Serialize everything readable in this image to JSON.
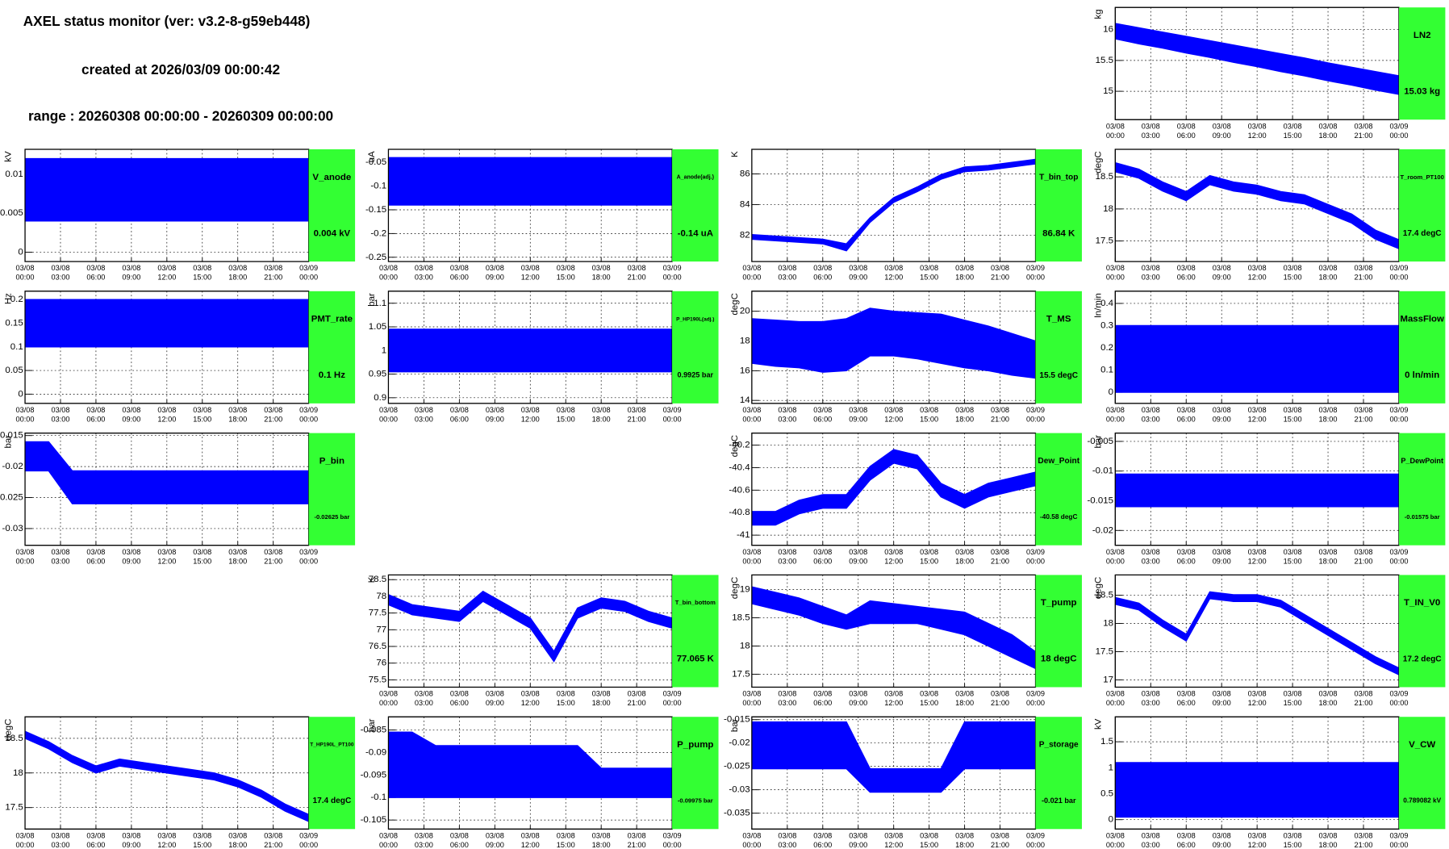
{
  "header": {
    "title": "AXEL status monitor (ver: v3.2-8-g59eb448)",
    "created": "created at 2026/03/09 00:00:42",
    "range": "range : 20260308 00:00:00 - 20260309 00:00:00"
  },
  "time_axis": {
    "x": [
      0,
      2,
      4,
      6,
      8,
      10,
      12,
      14,
      16,
      18,
      20,
      22,
      24
    ],
    "xlim": [
      0,
      24
    ],
    "xticks": [
      {
        "value": 0,
        "label": "03/08 00:00"
      },
      {
        "value": 3,
        "label": "03/08 03:00"
      },
      {
        "value": 6,
        "label": "03/08 06:00"
      },
      {
        "value": 9,
        "label": "03/08 09:00"
      },
      {
        "value": 12,
        "label": "03/08 12:00"
      },
      {
        "value": 15,
        "label": "03/08 15:00"
      },
      {
        "value": 18,
        "label": "03/08 18:00"
      },
      {
        "value": 21,
        "label": "03/08 21:00"
      },
      {
        "value": 24,
        "label": "03/09 00:00"
      }
    ]
  },
  "chart_data": [
    {
      "type": "band",
      "title": "LN2",
      "current": "15.03 kg",
      "ylabel": "kg",
      "color": "#0000ff",
      "ylim": [
        14.54,
        16.36
      ],
      "yticks": [
        15,
        15.5,
        16
      ],
      "highs": [
        16.1,
        16.03,
        15.96,
        15.89,
        15.82,
        15.75,
        15.68,
        15.61,
        15.54,
        15.46,
        15.39,
        15.32,
        15.25
      ],
      "lows": [
        15.85,
        15.77,
        15.7,
        15.62,
        15.55,
        15.47,
        15.4,
        15.32,
        15.25,
        15.17,
        15.1,
        15.02,
        14.95
      ]
    },
    {
      "type": "band",
      "title": "V_anode",
      "current": "0.004 kV",
      "ylabel": "kV",
      "color": "#0000ff",
      "ylim": [
        -0.0012,
        0.0132
      ],
      "yticks": [
        0,
        0.005,
        0.01
      ],
      "highs": [
        0.012,
        0.012,
        0.012,
        0.012,
        0.012,
        0.012,
        0.012,
        0.012,
        0.012,
        0.012,
        0.012,
        0.012,
        0.012
      ],
      "lows": [
        0.004,
        0.004,
        0.004,
        0.004,
        0.004,
        0.004,
        0.004,
        0.004,
        0.004,
        0.004,
        0.004,
        0.004,
        0.004
      ]
    },
    {
      "type": "band",
      "title": "A_anode(adj.)",
      "current": "-0.14 uA",
      "ylabel": "uA",
      "color": "#0000ff",
      "ylim": [
        -0.259,
        -0.0225
      ],
      "yticks": [
        -0.25,
        -0.2,
        -0.15,
        -0.1,
        -0.05
      ],
      "highs": [
        -0.04,
        -0.04,
        -0.04,
        -0.04,
        -0.04,
        -0.04,
        -0.04,
        -0.04,
        -0.04,
        -0.04,
        -0.04,
        -0.04,
        -0.04
      ],
      "lows": [
        -0.14,
        -0.14,
        -0.14,
        -0.14,
        -0.14,
        -0.14,
        -0.14,
        -0.14,
        -0.14,
        -0.14,
        -0.14,
        -0.14,
        -0.14
      ]
    },
    {
      "type": "band",
      "title": "T_bin_top",
      "current": "86.84 K",
      "ylabel": "K",
      "color": "#0000ff",
      "ylim": [
        80.3,
        87.6
      ],
      "yticks": [
        82,
        84,
        86
      ],
      "highs": [
        82.05,
        81.95,
        81.85,
        81.75,
        81.45,
        83.15,
        84.45,
        85.15,
        85.95,
        86.45,
        86.55,
        86.75,
        86.95
      ],
      "lows": [
        81.75,
        81.65,
        81.55,
        81.45,
        81.0,
        82.85,
        84.15,
        84.85,
        85.65,
        86.15,
        86.25,
        86.45,
        86.65
      ]
    },
    {
      "type": "band",
      "title": "T_room_PT100",
      "current": "17.4 degC",
      "ylabel": "degC",
      "color": "#0000ff",
      "ylim": [
        17.18,
        18.93
      ],
      "yticks": [
        17.5,
        18,
        18.5
      ],
      "highs": [
        18.72,
        18.62,
        18.42,
        18.27,
        18.52,
        18.42,
        18.37,
        18.27,
        18.22,
        18.07,
        17.92,
        17.67,
        17.52
      ],
      "lows": [
        18.58,
        18.48,
        18.28,
        18.13,
        18.38,
        18.28,
        18.23,
        18.13,
        18.08,
        17.93,
        17.78,
        17.53,
        17.38
      ]
    },
    {
      "type": "band",
      "title": "PMT_rate",
      "current": "0.1 Hz",
      "ylabel": "Hz",
      "color": "#0000ff",
      "ylim": [
        -0.0196,
        0.2176
      ],
      "yticks": [
        0,
        0.05,
        0.1,
        0.15,
        0.2
      ],
      "highs": [
        0.2,
        0.2,
        0.2,
        0.2,
        0.2,
        0.2,
        0.2,
        0.2,
        0.2,
        0.2,
        0.2,
        0.2,
        0.2
      ],
      "lows": [
        0.1,
        0.1,
        0.1,
        0.1,
        0.1,
        0.1,
        0.1,
        0.1,
        0.1,
        0.1,
        0.1,
        0.1,
        0.1
      ]
    },
    {
      "type": "band",
      "title": "P_HP190L(adj.)",
      "current": "0.9925 bar",
      "ylabel": "bar",
      "color": "#0000ff",
      "ylim": [
        0.888,
        1.1255
      ],
      "yticks": [
        0.9,
        0.95,
        1,
        1.05,
        1.1
      ],
      "highs": [
        1.045,
        1.045,
        1.045,
        1.045,
        1.045,
        1.045,
        1.045,
        1.045,
        1.045,
        1.045,
        1.045,
        1.045,
        1.045
      ],
      "lows": [
        0.955,
        0.955,
        0.955,
        0.955,
        0.955,
        0.955,
        0.955,
        0.955,
        0.955,
        0.955,
        0.955,
        0.955,
        0.955
      ]
    },
    {
      "type": "band",
      "title": "T_MS",
      "current": "15.5 degC",
      "ylabel": "degC",
      "color": "#0000ff",
      "ylim": [
        13.8,
        21.35
      ],
      "yticks": [
        14,
        16,
        18,
        20
      ],
      "highs": [
        19.5,
        19.4,
        19.3,
        19.3,
        19.5,
        20.2,
        20.0,
        19.9,
        19.8,
        19.4,
        19.0,
        18.5,
        18.0
      ],
      "lows": [
        16.5,
        16.3,
        16.2,
        15.9,
        16.0,
        17.0,
        17.0,
        16.8,
        16.5,
        16.2,
        16.0,
        15.7,
        15.5
      ]
    },
    {
      "type": "band",
      "title": "MassFlow",
      "current": "0 ln/min",
      "ylabel": "ln/min",
      "color": "#0000ff",
      "ylim": [
        -0.05,
        0.455
      ],
      "yticks": [
        0,
        0.1,
        0.2,
        0.3,
        0.4
      ],
      "highs": [
        0.3,
        0.3,
        0.3,
        0.3,
        0.3,
        0.3,
        0.3,
        0.3,
        0.3,
        0.3,
        0.3,
        0.3,
        0.3
      ],
      "lows": [
        0,
        0,
        0,
        0,
        0,
        0,
        0,
        0,
        0,
        0,
        0,
        0,
        0
      ]
    },
    {
      "type": "band",
      "title": "P_bin",
      "current": "-0.02625 bar",
      "ylabel": "bar",
      "color": "#0000ff",
      "ylim": [
        -0.0327,
        -0.0146
      ],
      "yticks": [
        -0.03,
        -0.025,
        -0.02,
        -0.015
      ],
      "highs": [
        -0.016,
        -0.016,
        -0.0207,
        -0.0207,
        -0.0207,
        -0.0207,
        -0.0207,
        -0.0207,
        -0.0207,
        -0.0207,
        -0.0207,
        -0.0207,
        -0.0207
      ],
      "lows": [
        -0.0207,
        -0.0207,
        -0.026,
        -0.026,
        -0.026,
        -0.026,
        -0.026,
        -0.026,
        -0.026,
        -0.026,
        -0.026,
        -0.026,
        -0.026
      ]
    },
    {
      "type": "band",
      "title": "Dew_Point",
      "current": "-40.58 degC",
      "ylabel": "degC",
      "color": "#0000ff",
      "ylim": [
        -41.09,
        -40.093
      ],
      "yticks": [
        -41,
        -40.8,
        -40.6,
        -40.4,
        -40.2
      ],
      "highs": [
        -40.79,
        -40.79,
        -40.69,
        -40.64,
        -40.64,
        -40.39,
        -40.24,
        -40.29,
        -40.54,
        -40.64,
        -40.54,
        -40.49,
        -40.44
      ],
      "lows": [
        -40.91,
        -40.91,
        -40.81,
        -40.76,
        -40.76,
        -40.51,
        -40.36,
        -40.41,
        -40.66,
        -40.76,
        -40.66,
        -40.61,
        -40.56
      ]
    },
    {
      "type": "band",
      "title": "P_DewPoint",
      "current": "-0.01575 bar",
      "ylabel": "bar",
      "color": "#0000ff",
      "ylim": [
        -0.0225,
        -0.0036
      ],
      "yticks": [
        -0.02,
        -0.015,
        -0.01,
        -0.005
      ],
      "highs": [
        -0.0105,
        -0.0105,
        -0.0105,
        -0.0105,
        -0.0105,
        -0.0105,
        -0.0105,
        -0.0105,
        -0.0105,
        -0.0105,
        -0.0105,
        -0.0105,
        -0.0105
      ],
      "lows": [
        -0.016,
        -0.016,
        -0.016,
        -0.016,
        -0.016,
        -0.016,
        -0.016,
        -0.016,
        -0.016,
        -0.016,
        -0.016,
        -0.016,
        -0.016
      ]
    },
    {
      "type": "band",
      "title": "T_bin_bottom",
      "current": "77.065 K",
      "ylabel": "K",
      "color": "#0000ff",
      "ylim": [
        75.28,
        78.64
      ],
      "yticks": [
        75.5,
        76,
        76.5,
        77,
        77.5,
        78,
        78.5
      ],
      "highs": [
        78.05,
        77.75,
        77.65,
        77.55,
        78.15,
        77.75,
        77.35,
        76.35,
        77.65,
        77.95,
        77.85,
        77.55,
        77.35
      ],
      "lows": [
        77.75,
        77.45,
        77.35,
        77.25,
        77.85,
        77.45,
        77.05,
        76.05,
        77.35,
        77.65,
        77.55,
        77.25,
        77.05
      ]
    },
    {
      "type": "band",
      "title": "T_pump",
      "current": "18 degC",
      "ylabel": "degC",
      "color": "#0000ff",
      "ylim": [
        17.27,
        19.26
      ],
      "yticks": [
        17.5,
        18,
        18.5,
        19
      ],
      "highs": [
        19.05,
        18.95,
        18.85,
        18.7,
        18.55,
        18.8,
        18.75,
        18.7,
        18.65,
        18.6,
        18.4,
        18.2,
        17.9
      ],
      "lows": [
        18.75,
        18.65,
        18.55,
        18.4,
        18.3,
        18.4,
        18.4,
        18.4,
        18.3,
        18.2,
        18.0,
        17.8,
        17.6
      ]
    },
    {
      "type": "band",
      "title": "T_IN_V0",
      "current": "17.2 degC",
      "ylabel": "degC",
      "color": "#0000ff",
      "ylim": [
        16.87,
        18.86
      ],
      "yticks": [
        17,
        17.5,
        18,
        18.5
      ],
      "highs": [
        18.46,
        18.36,
        18.06,
        17.81,
        18.56,
        18.51,
        18.51,
        18.41,
        18.16,
        17.91,
        17.66,
        17.41,
        17.21
      ],
      "lows": [
        18.34,
        18.24,
        17.94,
        17.69,
        18.44,
        18.39,
        18.39,
        18.29,
        18.04,
        17.79,
        17.54,
        17.29,
        17.09
      ]
    },
    {
      "type": "band",
      "title": "T_HP190L_PT100",
      "current": "17.4 degC",
      "ylabel": "degC",
      "color": "#0000ff",
      "ylim": [
        17.19,
        18.81
      ],
      "yticks": [
        17.5,
        18,
        18.5
      ],
      "highs": [
        18.6,
        18.45,
        18.25,
        18.1,
        18.2,
        18.15,
        18.1,
        18.05,
        18.0,
        17.9,
        17.75,
        17.55,
        17.4
      ],
      "lows": [
        18.5,
        18.35,
        18.15,
        18.0,
        18.1,
        18.05,
        18.0,
        17.95,
        17.9,
        17.8,
        17.65,
        17.45,
        17.3
      ]
    },
    {
      "type": "band",
      "title": "P_pump",
      "current": "-0.09975 bar",
      "ylabel": "bar",
      "color": "#0000ff",
      "ylim": [
        -0.107,
        -0.0821
      ],
      "yticks": [
        -0.105,
        -0.1,
        -0.095,
        -0.09,
        -0.085
      ],
      "highs": [
        -0.0855,
        -0.0855,
        -0.0885,
        -0.0885,
        -0.0885,
        -0.0885,
        -0.0885,
        -0.0885,
        -0.0885,
        -0.0935,
        -0.0935,
        -0.0935,
        -0.0935
      ],
      "lows": [
        -0.1,
        -0.1,
        -0.1,
        -0.1,
        -0.1,
        -0.1,
        -0.1,
        -0.1,
        -0.1,
        -0.1,
        -0.1,
        -0.1,
        -0.1
      ]
    },
    {
      "type": "band",
      "title": "P_storage",
      "current": "-0.021 bar",
      "ylabel": "bar",
      "color": "#0000ff",
      "ylim": [
        -0.0384,
        -0.0144
      ],
      "yticks": [
        -0.035,
        -0.03,
        -0.025,
        -0.02,
        -0.015
      ],
      "highs": [
        -0.0155,
        -0.0155,
        -0.0155,
        -0.0155,
        -0.0155,
        -0.0255,
        -0.0255,
        -0.0255,
        -0.0255,
        -0.0155,
        -0.0155,
        -0.0155,
        -0.0155
      ],
      "lows": [
        -0.0255,
        -0.0255,
        -0.0255,
        -0.0255,
        -0.0255,
        -0.0305,
        -0.0305,
        -0.0305,
        -0.0305,
        -0.0255,
        -0.0255,
        -0.0255,
        -0.0255
      ]
    },
    {
      "type": "band",
      "title": "V_CW",
      "current": "0.789082 kV",
      "ylabel": "kV",
      "color": "#0000ff",
      "ylim": [
        -0.18,
        1.98
      ],
      "yticks": [
        0,
        0.5,
        1,
        1.5
      ],
      "highs": [
        1.1,
        1.1,
        1.1,
        1.1,
        1.1,
        1.1,
        1.1,
        1.1,
        1.1,
        1.1,
        1.1,
        1.1,
        1.1
      ],
      "lows": [
        0.05,
        0.05,
        0.05,
        0.05,
        0.05,
        0.05,
        0.05,
        0.05,
        0.05,
        0.05,
        0.05,
        0.05,
        0.05
      ]
    }
  ]
}
